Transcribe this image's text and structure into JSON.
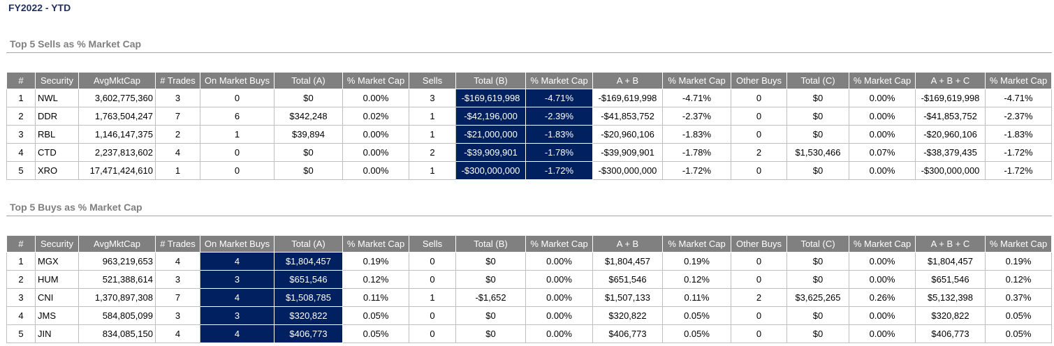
{
  "header": {
    "title": "FY2022 - YTD"
  },
  "sections": [
    {
      "title": "Top 5 Sells as % Market Cap",
      "highlight_columns": [
        9,
        10
      ],
      "highlight_color": "#002060",
      "table": {
        "columns": [
          "#",
          "Security",
          "AvgMktCap",
          "# Trades",
          "On Market Buys",
          "Total (A)",
          "% Market Cap",
          "Sells",
          "Total (B)",
          "% Market Cap",
          "A + B",
          "% Market Cap",
          "Other Buys",
          "Total (C)",
          "% Market Cap",
          "A + B + C",
          "% Market Cap"
        ],
        "rows": [
          [
            "1",
            "NWL",
            "3,602,775,360",
            "3",
            "0",
            "$0",
            "0.00%",
            "3",
            "-$169,619,998",
            "-4.71%",
            "-$169,619,998",
            "-4.71%",
            "0",
            "$0",
            "0.00%",
            "-$169,619,998",
            "-4.71%"
          ],
          [
            "2",
            "DDR",
            "1,763,504,247",
            "7",
            "6",
            "$342,248",
            "0.02%",
            "1",
            "-$42,196,000",
            "-2.39%",
            "-$41,853,752",
            "-2.37%",
            "0",
            "$0",
            "0.00%",
            "-$41,853,752",
            "-2.37%"
          ],
          [
            "3",
            "RBL",
            "1,146,147,375",
            "2",
            "1",
            "$39,894",
            "0.00%",
            "1",
            "-$21,000,000",
            "-1.83%",
            "-$20,960,106",
            "-1.83%",
            "0",
            "$0",
            "0.00%",
            "-$20,960,106",
            "-1.83%"
          ],
          [
            "4",
            "CTD",
            "2,237,813,602",
            "4",
            "0",
            "$0",
            "0.00%",
            "2",
            "-$39,909,901",
            "-1.78%",
            "-$39,909,901",
            "-1.78%",
            "2",
            "$1,530,466",
            "0.07%",
            "-$38,379,435",
            "-1.72%"
          ],
          [
            "5",
            "XRO",
            "17,471,424,610",
            "1",
            "0",
            "$0",
            "0.00%",
            "1",
            "-$300,000,000",
            "-1.72%",
            "-$300,000,000",
            "-1.72%",
            "0",
            "$0",
            "0.00%",
            "-$300,000,000",
            "-1.72%"
          ]
        ]
      }
    },
    {
      "title": "Top 5 Buys as % Market Cap",
      "highlight_columns": [
        5,
        6
      ],
      "highlight_color": "#002060",
      "table": {
        "columns": [
          "#",
          "Security",
          "AvgMktCap",
          "# Trades",
          "On Market Buys",
          "Total (A)",
          "% Market Cap",
          "Sells",
          "Total (B)",
          "% Market Cap",
          "A + B",
          "% Market Cap",
          "Other Buys",
          "Total (C)",
          "% Market Cap",
          "A + B + C",
          "% Market Cap"
        ],
        "rows": [
          [
            "1",
            "MGX",
            "963,219,653",
            "4",
            "4",
            "$1,804,457",
            "0.19%",
            "0",
            "$0",
            "0.00%",
            "$1,804,457",
            "0.19%",
            "0",
            "$0",
            "0.00%",
            "$1,804,457",
            "0.19%"
          ],
          [
            "2",
            "HUM",
            "521,388,614",
            "3",
            "3",
            "$651,546",
            "0.12%",
            "0",
            "$0",
            "0.00%",
            "$651,546",
            "0.12%",
            "0",
            "$0",
            "0.00%",
            "$651,546",
            "0.12%"
          ],
          [
            "3",
            "CNI",
            "1,370,897,308",
            "7",
            "4",
            "$1,508,785",
            "0.11%",
            "1",
            "-$1,652",
            "0.00%",
            "$1,507,133",
            "0.11%",
            "2",
            "$3,625,265",
            "0.26%",
            "$5,132,398",
            "0.37%"
          ],
          [
            "4",
            "JMS",
            "584,805,099",
            "3",
            "3",
            "$320,822",
            "0.05%",
            "0",
            "$0",
            "0.00%",
            "$320,822",
            "0.05%",
            "0",
            "$0",
            "0.00%",
            "$320,822",
            "0.05%"
          ],
          [
            "5",
            "JIN",
            "834,085,150",
            "4",
            "4",
            "$406,773",
            "0.05%",
            "0",
            "$0",
            "0.00%",
            "$406,773",
            "0.05%",
            "0",
            "$0",
            "0.00%",
            "$406,773",
            "0.05%"
          ]
        ]
      }
    }
  ]
}
